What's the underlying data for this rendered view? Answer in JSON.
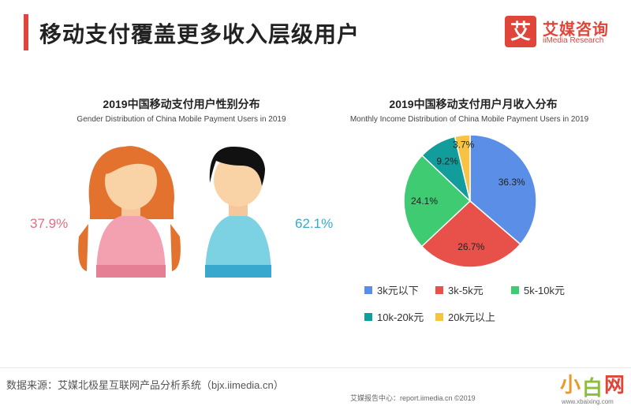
{
  "header": {
    "title": "移动支付覆盖更多收入层级用户",
    "logo_mark": "艾",
    "logo_cn": "艾媒咨询",
    "logo_en": "iiMedia Research",
    "accent_color": "#e0453a"
  },
  "chart_data": [
    {
      "type": "pictogram",
      "title": "2019中国移动支付用户性别分布",
      "subtitle": "Gender Distribution of China Mobile Payment Users in 2019",
      "categories": [
        "female",
        "male"
      ],
      "values": [
        37.9,
        62.1
      ],
      "labels": [
        "37.9%",
        "62.1%"
      ],
      "colors": [
        "#e06f82",
        "#38a8cf"
      ]
    },
    {
      "type": "pie",
      "title": "2019中国移动支付用户月收入分布",
      "subtitle": "Monthly Income Distribution of China Mobile Payment Users in 2019",
      "categories": [
        "3k元以下",
        "3k-5k元",
        "5k-10k元",
        "10k-20k元",
        "20k元以上"
      ],
      "values": [
        36.3,
        26.7,
        24.1,
        9.2,
        3.7
      ],
      "labels": [
        "36.3%",
        "26.7%",
        "24.1%",
        "9.2%",
        "3.7%"
      ],
      "colors": [
        "#5b8ee6",
        "#e8504a",
        "#3ecb72",
        "#139c9c",
        "#f6c342"
      ],
      "legend": "bottom"
    }
  ],
  "footer": {
    "source": "数据来源：艾媒北极星互联网产品分析系统（bjx.iimedia.cn）",
    "report": "艾媒报告中心：report.iimedia.cn ©2019",
    "watermark_chars": [
      "小",
      "白",
      "网"
    ],
    "watermark_url": "www.xbaixing.com"
  }
}
